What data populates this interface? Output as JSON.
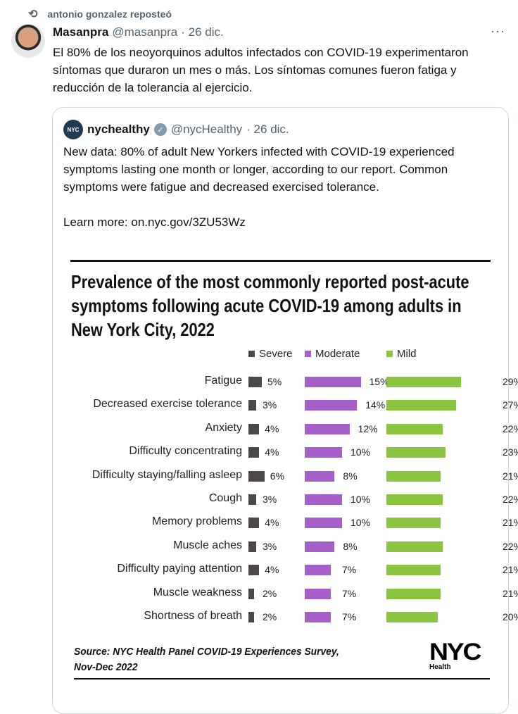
{
  "repost": {
    "icon": "repost-icon",
    "label": "antonio gonzalez reposteó"
  },
  "tweet": {
    "name": "Masanpra",
    "handle": "@masanpra",
    "date": "· 26 dic.",
    "more": "···",
    "text": "El 80% de los neoyorquinos adultos infectados con COVID-19 experimentaron síntomas que duraron un mes o más. Los síntomas comunes fueron fatiga y reducción de la tolerancia al ejercicio."
  },
  "quote": {
    "avatar_text": "NYC",
    "name": "nychealthy",
    "handle": "@nycHealthy",
    "date": "· 26 dic.",
    "text": "New data: 80% of adult New Yorkers infected with COVID-19 experienced symptoms lasting one month or longer, according to our report. Common symptoms were fatigue and decreased exercised tolerance.",
    "learn_more": "Learn more: on.nyc.gov/3ZU53Wz"
  },
  "chart_data": {
    "type": "bar",
    "title": "Prevalence of the most commonly reported post-acute symptoms following acute COVID-19 among adults in New York City, 2022",
    "title_lines": [
      "Prevalence of the most commonly reported post-acute",
      "symptoms following acute COVID-19 among adults in",
      "New York City, 2022"
    ],
    "categories": [
      "Fatigue",
      "Decreased exercise tolerance",
      "Anxiety",
      "Difficulty concentrating",
      "Difficulty staying/falling asleep",
      "Cough",
      "Memory problems",
      "Muscle aches",
      "Difficulty paying attention",
      "Muscle weakness",
      "Shortness of breath"
    ],
    "series": [
      {
        "name": "Severe",
        "color": "#4d4845",
        "values": [
          5,
          3,
          4,
          4,
          6,
          3,
          4,
          3,
          4,
          2,
          2
        ]
      },
      {
        "name": "Moderate",
        "color": "#a65fc8",
        "values": [
          15,
          14,
          12,
          10,
          8,
          10,
          10,
          8,
          7,
          7,
          7
        ]
      },
      {
        "name": "Mild",
        "color": "#8bc53f",
        "values": [
          29,
          27,
          22,
          23,
          21,
          22,
          21,
          22,
          21,
          21,
          20
        ]
      }
    ],
    "unit": "%",
    "legend": "top",
    "source": [
      "Source: NYC Health Panel COVID-19 Experiences Survey,",
      "Nov-Dec 2022"
    ],
    "logo": {
      "main": "NYC",
      "sub": "Health"
    }
  }
}
